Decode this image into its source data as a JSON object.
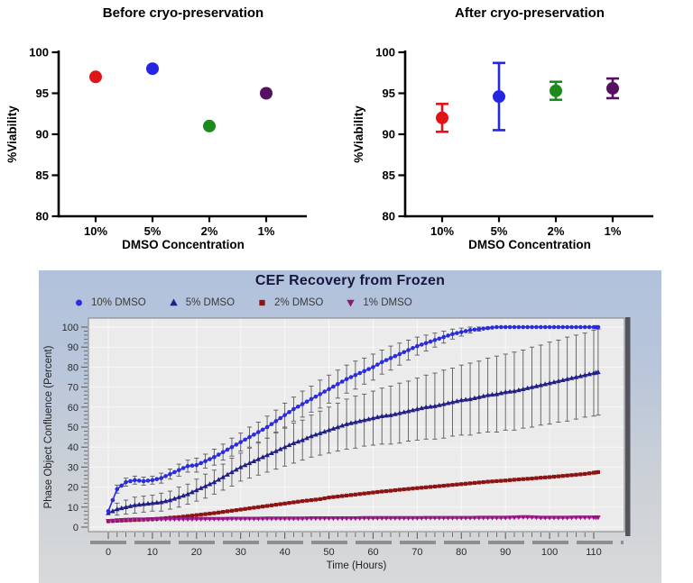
{
  "figure": {
    "background": "#ffffff"
  },
  "chart_data": [
    {
      "type": "scatter",
      "title": "Before cryo-preservation",
      "xlabel": "DMSO Concentration",
      "ylabel": "%Viability",
      "ylim": [
        80,
        100
      ],
      "yticks": [
        80,
        85,
        90,
        95,
        100
      ],
      "categories": [
        "10%",
        "5%",
        "2%",
        "1%"
      ],
      "grid": false,
      "axis_color": "#000000",
      "points": [
        {
          "category": "10%",
          "value": 97,
          "color": "#e01316"
        },
        {
          "category": "5%",
          "value": 98,
          "color": "#2525e2"
        },
        {
          "category": "2%",
          "value": 91,
          "color": "#1d8a1d"
        },
        {
          "category": "1%",
          "value": 95,
          "color": "#571061"
        }
      ]
    },
    {
      "type": "scatter",
      "title": "After cryo-preservation",
      "xlabel": "DMSO Concentration",
      "ylabel": "%Viability",
      "ylim": [
        80,
        100
      ],
      "yticks": [
        80,
        85,
        90,
        95,
        100
      ],
      "categories": [
        "10%",
        "5%",
        "2%",
        "1%"
      ],
      "grid": false,
      "axis_color": "#000000",
      "points": [
        {
          "category": "10%",
          "value": 92.0,
          "error": 1.7,
          "color": "#e01316"
        },
        {
          "category": "5%",
          "value": 94.6,
          "error": 4.1,
          "color": "#2525e2"
        },
        {
          "category": "2%",
          "value": 95.3,
          "error": 1.1,
          "color": "#1d8a1d"
        },
        {
          "category": "1%",
          "value": 95.6,
          "error": 1.2,
          "color": "#571061"
        }
      ]
    },
    {
      "type": "line",
      "title": "CEF Recovery from Frozen",
      "xlabel": "Time (Hours)",
      "ylabel": "Phase Object Confluence (Percent)",
      "xlim": [
        0,
        117
      ],
      "ylim": [
        0,
        105
      ],
      "xticks": [
        0,
        10,
        20,
        30,
        40,
        50,
        60,
        70,
        80,
        90,
        100,
        110
      ],
      "yticks": [
        0,
        10,
        20,
        30,
        40,
        50,
        60,
        70,
        80,
        90,
        100
      ],
      "minor_tick_step": 2,
      "grid": true,
      "legend_position": "top-left",
      "plot_background": "#ebebeb",
      "error_bar_color": "#5a5a5a",
      "x": [
        0,
        2,
        4,
        6,
        8,
        10,
        12,
        14,
        16,
        18,
        20,
        22,
        24,
        26,
        28,
        30,
        32,
        34,
        36,
        38,
        40,
        42,
        44,
        46,
        48,
        50,
        52,
        54,
        56,
        58,
        60,
        62,
        64,
        66,
        68,
        70,
        72,
        74,
        76,
        78,
        80,
        82,
        84,
        86,
        88,
        90,
        92,
        94,
        96,
        98,
        100,
        102,
        104,
        106,
        108,
        110,
        111
      ],
      "series": [
        {
          "name": "10% DMSO",
          "marker": "circle",
          "color": "#2b2be0",
          "marker_color": "#2b2be0",
          "values": [
            8,
            19,
            22.5,
            23.5,
            23,
            23.5,
            24.5,
            26.5,
            28.5,
            30.5,
            31,
            33,
            35,
            37.5,
            40,
            42.5,
            45,
            47.5,
            50,
            53,
            56,
            59,
            61.5,
            64,
            66.5,
            69,
            71.5,
            74,
            76,
            78,
            80,
            82.5,
            84.5,
            86.5,
            88.5,
            90.5,
            92,
            93.5,
            95,
            96.5,
            97.5,
            98.5,
            99,
            99.5,
            100,
            100,
            100,
            100,
            100,
            100,
            100,
            100,
            100,
            100,
            100,
            100,
            100
          ],
          "errors": [
            0,
            2,
            2,
            2,
            2,
            2,
            2.5,
            2.5,
            3,
            3,
            3.5,
            3.5,
            4,
            4,
            4.5,
            4.5,
            5,
            5,
            5.5,
            5.5,
            6,
            6,
            6.5,
            6.5,
            7,
            7,
            7,
            7,
            7,
            6.5,
            6.5,
            6,
            6,
            5.5,
            5,
            4.5,
            4,
            3.5,
            3,
            2.5,
            2,
            1.5,
            1,
            0.5,
            0,
            0,
            0,
            0,
            0,
            0,
            0,
            0,
            0,
            0,
            0,
            0,
            0
          ]
        },
        {
          "name": "5% DMSO",
          "marker": "triangle-up",
          "color": "#1f1f85",
          "marker_color": "#1f1f85",
          "values": [
            7,
            9,
            10,
            11,
            11.5,
            12,
            12.5,
            13.5,
            15,
            16.5,
            18.5,
            20.5,
            22.5,
            25,
            27.5,
            30,
            32,
            34,
            36,
            38,
            40,
            42,
            43.5,
            45.5,
            47,
            48.5,
            50,
            51.5,
            52.5,
            53.5,
            54.5,
            55.5,
            56,
            57,
            58,
            59,
            60,
            60.5,
            61.5,
            62.5,
            63.5,
            64,
            65,
            66,
            66.5,
            67.5,
            68,
            69,
            70,
            71,
            72,
            73,
            74,
            75,
            76,
            77,
            77.5
          ],
          "errors": [
            0,
            3,
            3.5,
            4,
            4,
            4,
            4.5,
            4.5,
            5,
            5,
            5.5,
            6,
            6,
            6.5,
            7,
            7,
            7.5,
            8,
            8.5,
            9,
            9.5,
            10,
            10,
            10.5,
            11,
            11.5,
            12,
            12.5,
            13,
            13,
            13.5,
            14,
            14.5,
            15,
            15,
            15.5,
            16,
            16.5,
            17,
            17,
            17.5,
            18,
            18,
            18.5,
            19,
            19,
            19.5,
            19.5,
            20,
            20,
            20.5,
            20.5,
            21,
            21,
            21,
            21.5,
            21.5
          ]
        },
        {
          "name": "2% DMSO",
          "marker": "square",
          "color": "#8c1414",
          "marker_color": "#8c1414",
          "values": [
            3,
            3.2,
            3.4,
            3.6,
            3.8,
            4,
            4.3,
            4.7,
            5,
            5.5,
            6,
            6.5,
            7,
            7.6,
            8.2,
            8.8,
            9.4,
            10,
            10.6,
            11.2,
            11.8,
            12.4,
            13,
            13.5,
            14,
            14.8,
            15.3,
            15.8,
            16.3,
            16.8,
            17.3,
            17.8,
            18.2,
            18.7,
            19.1,
            19.5,
            19.9,
            20.3,
            20.7,
            21.1,
            21.5,
            21.9,
            22.3,
            22.7,
            23,
            23.3,
            23.7,
            24,
            24.3,
            24.7,
            25,
            25.4,
            25.8,
            26.2,
            26.6,
            27.2,
            27.5
          ]
        },
        {
          "name": "1% DMSO",
          "marker": "triangle-down",
          "color": "#c832c0",
          "marker_color": "#8c1878",
          "values": [
            3,
            3.4,
            3.6,
            3.8,
            3.8,
            3.9,
            4,
            4,
            4,
            4,
            4,
            4.1,
            4.1,
            4.1,
            4.2,
            4.2,
            4.2,
            4.2,
            4.3,
            4.3,
            4.3,
            4.3,
            4.3,
            4.4,
            4.4,
            4.4,
            4.4,
            4.4,
            4.4,
            4.5,
            4.5,
            4.5,
            4.5,
            4.5,
            4.5,
            4.5,
            4.6,
            4.6,
            4.6,
            4.6,
            4.6,
            4.6,
            4.7,
            4.7,
            4.7,
            4.7,
            4.8,
            5,
            4.9,
            4.7,
            4.7,
            4.7,
            4.7,
            4.8,
            4.8,
            4.8,
            4.8
          ]
        }
      ]
    }
  ]
}
